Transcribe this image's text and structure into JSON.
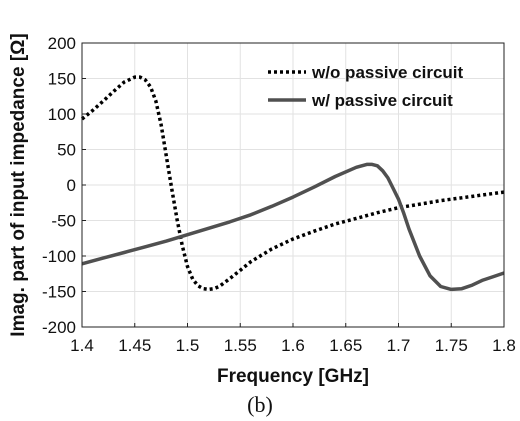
{
  "caption": "(b)",
  "chart_data": {
    "type": "line",
    "title": "",
    "xlabel": "Frequency [GHz]",
    "ylabel": "Imag. part of input impedance [Ω]",
    "xlim": [
      1.4,
      1.8
    ],
    "ylim": [
      -200,
      200
    ],
    "xticks": [
      1.4,
      1.45,
      1.5,
      1.55,
      1.6,
      1.65,
      1.7,
      1.75,
      1.8
    ],
    "xtick_labels": [
      "1.4",
      "1.45",
      "1.5",
      "1.55",
      "1.6",
      "1.65",
      "1.7",
      "1.75",
      "1.8"
    ],
    "yticks": [
      -200,
      -150,
      -100,
      -50,
      0,
      50,
      100,
      150,
      200
    ],
    "ytick_labels": [
      "-200",
      "-150",
      "-100",
      "-50",
      "0",
      "50",
      "100",
      "150",
      "200"
    ],
    "grid": true,
    "legend_position": "top-right",
    "series": [
      {
        "name": "w/o passive circuit",
        "style": "dotted",
        "color": "#000000",
        "x": [
          1.4,
          1.41,
          1.42,
          1.43,
          1.44,
          1.45,
          1.455,
          1.46,
          1.465,
          1.47,
          1.475,
          1.48,
          1.485,
          1.49,
          1.495,
          1.5,
          1.505,
          1.51,
          1.515,
          1.52,
          1.525,
          1.53,
          1.54,
          1.55,
          1.56,
          1.58,
          1.6,
          1.62,
          1.64,
          1.66,
          1.68,
          1.7,
          1.72,
          1.74,
          1.76,
          1.78,
          1.8
        ],
        "y": [
          93,
          105,
          118,
          132,
          145,
          152,
          152,
          148,
          138,
          118,
          85,
          40,
          -5,
          -48,
          -85,
          -115,
          -133,
          -142,
          -146,
          -147,
          -146,
          -143,
          -132,
          -120,
          -108,
          -90,
          -76,
          -65,
          -55,
          -47,
          -39,
          -32,
          -27,
          -22,
          -18,
          -14,
          -10
        ]
      },
      {
        "name": "w/ passive circuit",
        "style": "solid",
        "color": "#505050",
        "x": [
          1.4,
          1.42,
          1.44,
          1.46,
          1.48,
          1.5,
          1.52,
          1.54,
          1.56,
          1.58,
          1.6,
          1.62,
          1.64,
          1.66,
          1.67,
          1.675,
          1.68,
          1.685,
          1.69,
          1.695,
          1.7,
          1.705,
          1.71,
          1.72,
          1.73,
          1.74,
          1.75,
          1.76,
          1.77,
          1.78,
          1.79,
          1.8
        ],
        "y": [
          -111,
          -103,
          -95,
          -87,
          -79,
          -70,
          -61,
          -52,
          -42,
          -30,
          -17,
          -3,
          12,
          25,
          29,
          29,
          27,
          20,
          10,
          -5,
          -20,
          -40,
          -62,
          -100,
          -128,
          -143,
          -147,
          -146,
          -141,
          -134,
          -129,
          -124
        ]
      }
    ]
  }
}
